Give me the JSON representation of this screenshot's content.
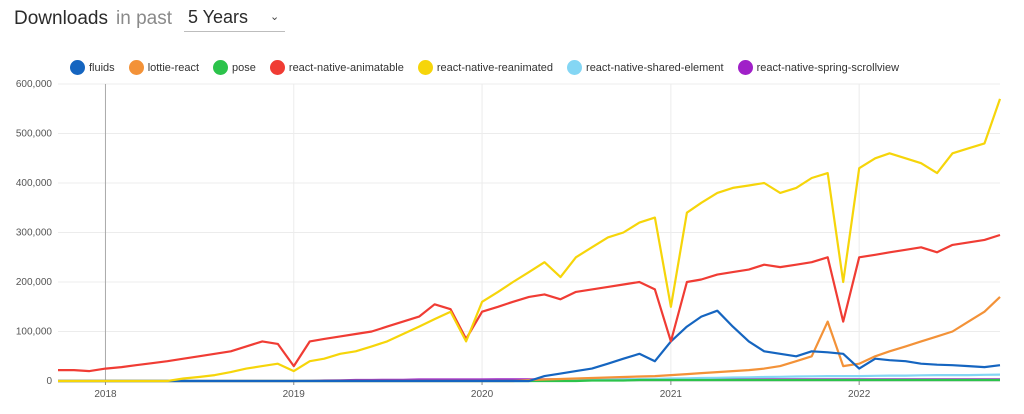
{
  "header": {
    "title": "Downloads",
    "subtitle": "in past",
    "period": "5 Years"
  },
  "chart_data": {
    "type": "line",
    "x": [
      "2017-10",
      "2017-11",
      "2017-12",
      "2018-01",
      "2018-02",
      "2018-03",
      "2018-04",
      "2018-05",
      "2018-06",
      "2018-07",
      "2018-08",
      "2018-09",
      "2018-10",
      "2018-11",
      "2018-12",
      "2019-01",
      "2019-02",
      "2019-03",
      "2019-04",
      "2019-05",
      "2019-06",
      "2019-07",
      "2019-08",
      "2019-09",
      "2019-10",
      "2019-11",
      "2019-12",
      "2020-01",
      "2020-02",
      "2020-03",
      "2020-04",
      "2020-05",
      "2020-06",
      "2020-07",
      "2020-08",
      "2020-09",
      "2020-10",
      "2020-11",
      "2020-12",
      "2021-01",
      "2021-02",
      "2021-03",
      "2021-04",
      "2021-05",
      "2021-06",
      "2021-07",
      "2021-08",
      "2021-09",
      "2021-10",
      "2021-11",
      "2021-12",
      "2022-01",
      "2022-02",
      "2022-03",
      "2022-04",
      "2022-05",
      "2022-06",
      "2022-07",
      "2022-08",
      "2022-09",
      "2022-10"
    ],
    "xticks": [
      "2018",
      "2019",
      "2020",
      "2021",
      "2022"
    ],
    "yticks": [
      "0",
      "100,000",
      "200,000",
      "300,000",
      "400,000",
      "500,000",
      "600,000"
    ],
    "ylim": [
      0,
      600000
    ],
    "grid": true,
    "legend_position": "top",
    "series": [
      {
        "name": "fluids",
        "color": "#1565c0",
        "values": [
          0,
          0,
          0,
          0,
          0,
          0,
          0,
          0,
          0,
          0,
          0,
          0,
          0,
          0,
          0,
          0,
          0,
          0,
          0,
          0,
          0,
          0,
          0,
          0,
          0,
          0,
          0,
          0,
          0,
          0,
          0,
          10000,
          15000,
          20000,
          25000,
          35000,
          45000,
          55000,
          40000,
          80000,
          110000,
          130000,
          142000,
          110000,
          80000,
          60000,
          55000,
          50000,
          60000,
          58000,
          55000,
          25000,
          45000,
          42000,
          40000,
          35000,
          33000,
          32000,
          30000,
          28000,
          32000
        ]
      },
      {
        "name": "lottie-react",
        "color": "#f39238",
        "values": [
          0,
          0,
          0,
          0,
          0,
          0,
          0,
          0,
          0,
          0,
          0,
          0,
          0,
          0,
          0,
          0,
          0,
          0,
          0,
          0,
          0,
          0,
          0,
          0,
          0,
          0,
          0,
          0,
          0,
          0,
          2000,
          3000,
          4000,
          5000,
          6000,
          7000,
          8000,
          9000,
          10000,
          12000,
          14000,
          16000,
          18000,
          20000,
          22000,
          25000,
          30000,
          40000,
          50000,
          120000,
          30000,
          35000,
          50000,
          60000,
          70000,
          80000,
          90000,
          100000,
          120000,
          140000,
          170000
        ]
      },
      {
        "name": "pose",
        "color": "#2cc34b",
        "values": [
          0,
          0,
          0,
          0,
          0,
          0,
          0,
          0,
          0,
          0,
          0,
          0,
          0,
          0,
          0,
          0,
          0,
          0,
          0,
          0,
          0,
          0,
          0,
          0,
          0,
          0,
          0,
          0,
          0,
          0,
          0,
          0,
          0,
          0,
          1000,
          1000,
          1000,
          2000,
          2000,
          2000,
          2000,
          2000,
          2000,
          2000,
          2000,
          2000,
          2000,
          2000,
          2000,
          2000,
          2000,
          2000,
          2000,
          2000,
          2000,
          2000,
          2000,
          2000,
          2000,
          2000,
          2000
        ]
      },
      {
        "name": "react-native-animatable",
        "color": "#f03c34",
        "values": [
          22000,
          22000,
          20000,
          25000,
          28000,
          32000,
          36000,
          40000,
          45000,
          50000,
          55000,
          60000,
          70000,
          80000,
          75000,
          30000,
          80000,
          85000,
          90000,
          95000,
          100000,
          110000,
          120000,
          130000,
          155000,
          145000,
          85000,
          140000,
          150000,
          160000,
          170000,
          175000,
          165000,
          180000,
          185000,
          190000,
          195000,
          200000,
          185000,
          80000,
          200000,
          205000,
          215000,
          220000,
          225000,
          235000,
          230000,
          235000,
          240000,
          250000,
          120000,
          250000,
          255000,
          260000,
          265000,
          270000,
          260000,
          275000,
          280000,
          285000,
          295000
        ]
      },
      {
        "name": "react-native-reanimated",
        "color": "#f6d50a",
        "values": [
          0,
          0,
          0,
          0,
          0,
          0,
          0,
          0,
          5000,
          8000,
          12000,
          18000,
          25000,
          30000,
          35000,
          20000,
          40000,
          45000,
          55000,
          60000,
          70000,
          80000,
          95000,
          110000,
          125000,
          140000,
          80000,
          160000,
          180000,
          200000,
          220000,
          240000,
          210000,
          250000,
          270000,
          290000,
          300000,
          320000,
          330000,
          150000,
          340000,
          360000,
          380000,
          390000,
          395000,
          400000,
          380000,
          390000,
          410000,
          420000,
          200000,
          430000,
          450000,
          460000,
          450000,
          440000,
          420000,
          460000,
          470000,
          480000,
          570000
        ]
      },
      {
        "name": "react-native-shared-element",
        "color": "#84d6f4",
        "values": [
          0,
          0,
          0,
          0,
          0,
          0,
          0,
          0,
          0,
          0,
          0,
          0,
          0,
          0,
          0,
          0,
          0,
          0,
          0,
          0,
          0,
          0,
          0,
          0,
          0,
          0,
          0,
          0,
          0,
          0,
          0,
          1000,
          1500,
          2000,
          2500,
          3000,
          3500,
          4000,
          4500,
          5000,
          5500,
          6000,
          6500,
          7000,
          7500,
          8000,
          8500,
          9000,
          9500,
          10000,
          10000,
          10000,
          10500,
          11000,
          11000,
          11500,
          12000,
          12000,
          12000,
          12500,
          13000
        ]
      },
      {
        "name": "react-native-spring-scrollview",
        "color": "#a020c8",
        "values": [
          0,
          0,
          0,
          0,
          0,
          0,
          0,
          0,
          0,
          0,
          0,
          0,
          0,
          0,
          0,
          0,
          500,
          1000,
          1500,
          2000,
          2000,
          2500,
          2500,
          3000,
          3000,
          3000,
          3000,
          3000,
          3500,
          3500,
          3500,
          3500,
          3500,
          3500,
          3500,
          3500,
          3500,
          3500,
          3500,
          3500,
          3500,
          3500,
          3500,
          3500,
          3500,
          3500,
          3500,
          3500,
          3500,
          3500,
          3500,
          3500,
          3500,
          3500,
          3500,
          3500,
          3500,
          3500,
          3500,
          3500,
          3500
        ]
      }
    ]
  }
}
